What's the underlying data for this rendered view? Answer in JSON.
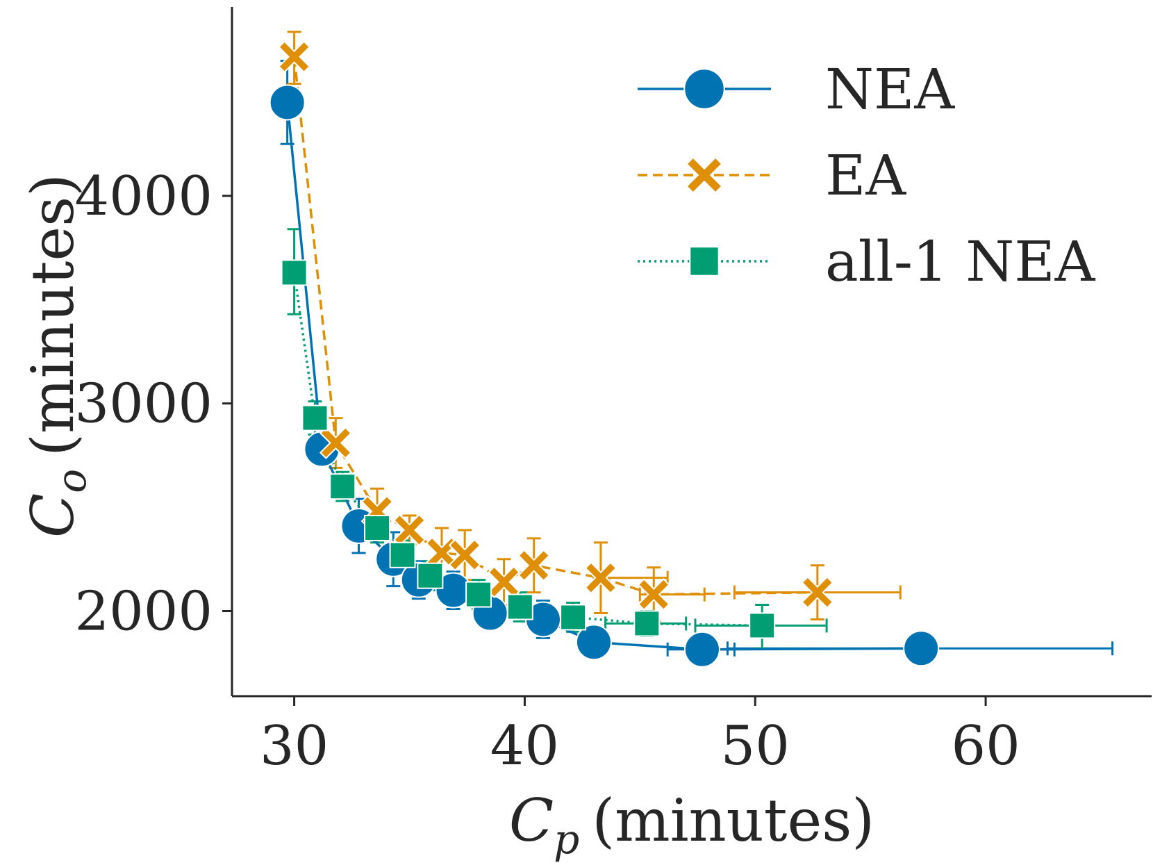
{
  "chart_data": {
    "type": "scatter",
    "title": "",
    "xlabel": {
      "symbol": "C",
      "sub": "p",
      "unit": "(minutes)"
    },
    "ylabel": {
      "symbol": "C",
      "sub": "o",
      "unit": "(minutes)"
    },
    "xlim": [
      27.3,
      67.2
    ],
    "ylim": [
      1590,
      4910
    ],
    "xticks": [
      30,
      40,
      50,
      60
    ],
    "yticks": [
      2000,
      3000,
      4000
    ],
    "xtick_labels": [
      "30",
      "40",
      "50",
      "60"
    ],
    "ytick_labels": [
      "2000",
      "3000",
      "4000"
    ],
    "grid": false,
    "legend": {
      "position": "top-right"
    },
    "series": [
      {
        "name": "NEA",
        "marker": "circle",
        "line": "solid",
        "color": "#0173b2",
        "points": [
          {
            "x": 29.7,
            "y": 4450,
            "ylo": 4250,
            "yhi": 4650
          },
          {
            "x": 31.2,
            "y": 2780,
            "ylo": 2740,
            "yhi": 2820
          },
          {
            "x": 32.8,
            "y": 2410,
            "ylo": 2280,
            "yhi": 2540
          },
          {
            "x": 34.3,
            "y": 2250,
            "ylo": 2120,
            "yhi": 2380
          },
          {
            "x": 35.4,
            "y": 2150,
            "ylo": 2060,
            "yhi": 2240
          },
          {
            "x": 36.9,
            "y": 2100,
            "ylo": 2010,
            "yhi": 2190
          },
          {
            "x": 38.5,
            "y": 1990,
            "ylo": 1940,
            "yhi": 2040
          },
          {
            "x": 40.8,
            "y": 1960,
            "ylo": 1870,
            "yhi": 2050
          },
          {
            "x": 43.0,
            "y": 1850,
            "ylo": 1790,
            "yhi": 1910
          },
          {
            "x": 47.7,
            "y": 1815,
            "xlo": 46.2,
            "xhi": 49.1
          },
          {
            "x": 57.2,
            "y": 1820,
            "xlo": 48.8,
            "xhi": 65.5
          }
        ]
      },
      {
        "name": "EA",
        "marker": "x",
        "line": "dashed",
        "color": "#de8f05",
        "points": [
          {
            "x": 30.0,
            "y": 4670,
            "ylo": 4540,
            "yhi": 4790
          },
          {
            "x": 31.8,
            "y": 2810,
            "ylo": 2690,
            "yhi": 2930
          },
          {
            "x": 33.6,
            "y": 2480,
            "ylo": 2380,
            "yhi": 2590
          },
          {
            "x": 35.0,
            "y": 2390,
            "ylo": 2320,
            "yhi": 2460
          },
          {
            "x": 36.4,
            "y": 2280,
            "ylo": 2160,
            "yhi": 2400
          },
          {
            "x": 37.4,
            "y": 2270,
            "ylo": 2150,
            "yhi": 2390
          },
          {
            "x": 39.1,
            "y": 2140,
            "ylo": 2030,
            "yhi": 2250
          },
          {
            "x": 40.4,
            "y": 2220,
            "ylo": 2090,
            "yhi": 2350
          },
          {
            "x": 43.3,
            "y": 2160,
            "ylo": 1990,
            "yhi": 2330,
            "xlo": 43.0,
            "xhi": 46.2
          },
          {
            "x": 45.6,
            "y": 2080,
            "ylo": 1950,
            "yhi": 2210,
            "xlo": 45.0,
            "xhi": 47.8
          },
          {
            "x": 52.7,
            "y": 2090,
            "ylo": 1960,
            "yhi": 2220,
            "xlo": 49.1,
            "xhi": 56.3
          }
        ]
      },
      {
        "name": "all-1 NEA",
        "marker": "square",
        "line": "dotted",
        "color": "#029e73",
        "points": [
          {
            "x": 30.0,
            "y": 3630,
            "ylo": 3430,
            "yhi": 3840
          },
          {
            "x": 30.9,
            "y": 2930,
            "ylo": 2850,
            "yhi": 3010
          },
          {
            "x": 32.1,
            "y": 2600,
            "ylo": 2530,
            "yhi": 2670
          },
          {
            "x": 33.6,
            "y": 2400,
            "ylo": 2330,
            "yhi": 2470
          },
          {
            "x": 34.7,
            "y": 2270,
            "ylo": 2200,
            "yhi": 2340
          },
          {
            "x": 35.9,
            "y": 2170,
            "ylo": 2100,
            "yhi": 2240
          },
          {
            "x": 38.0,
            "y": 2080,
            "ylo": 2010,
            "yhi": 2150
          },
          {
            "x": 39.8,
            "y": 2020,
            "ylo": 1950,
            "yhi": 2090
          },
          {
            "x": 42.1,
            "y": 1970,
            "ylo": 1900,
            "yhi": 2040
          },
          {
            "x": 45.3,
            "y": 1940,
            "ylo": 1880,
            "yhi": 2000,
            "xlo": 43.5,
            "xhi": 47.0
          },
          {
            "x": 50.3,
            "y": 1930,
            "ylo": 1820,
            "yhi": 2030,
            "xlo": 47.4,
            "xhi": 53.1
          }
        ]
      }
    ]
  }
}
